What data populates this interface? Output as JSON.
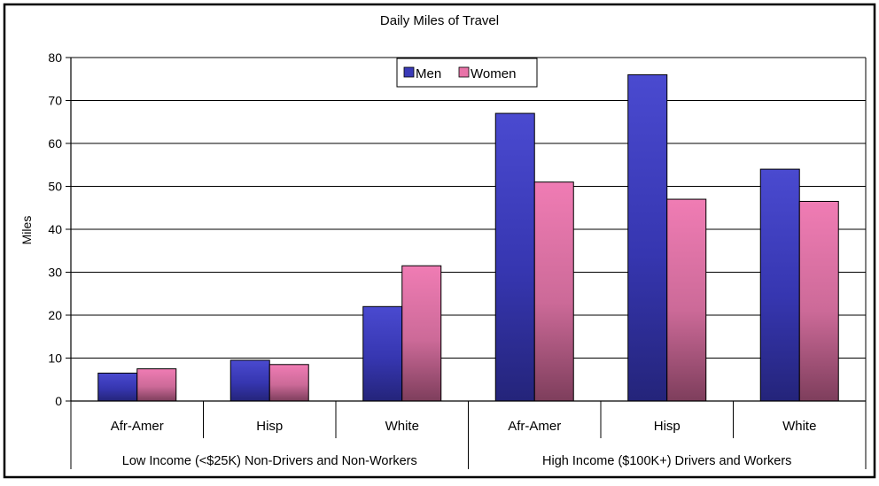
{
  "chart_data": {
    "type": "bar",
    "title": "Daily Miles of Travel",
    "ylabel": "Miles",
    "xlabel": "",
    "ylim": [
      0,
      80
    ],
    "yticks": [
      0,
      10,
      20,
      30,
      40,
      50,
      60,
      70,
      80
    ],
    "grid": true,
    "legend_position": "top-center",
    "categories": [
      "Afr-Amer",
      "Hisp",
      "White",
      "Afr-Amer",
      "Hisp",
      "White"
    ],
    "groups": [
      {
        "label": "Low Income (<$25K) Non-Drivers and Non-Workers",
        "categories": [
          "Afr-Amer",
          "Hisp",
          "White"
        ]
      },
      {
        "label": "High Income ($100K+) Drivers and Workers",
        "categories": [
          "Afr-Amer",
          "Hisp",
          "White"
        ]
      }
    ],
    "series": [
      {
        "name": "Men",
        "color": "#3a3ab8",
        "values": [
          6.5,
          9.5,
          22,
          67,
          76,
          54
        ]
      },
      {
        "name": "Women",
        "color": "#e873a8",
        "values": [
          7.5,
          8.5,
          31.5,
          51,
          47,
          46.5
        ]
      }
    ]
  }
}
